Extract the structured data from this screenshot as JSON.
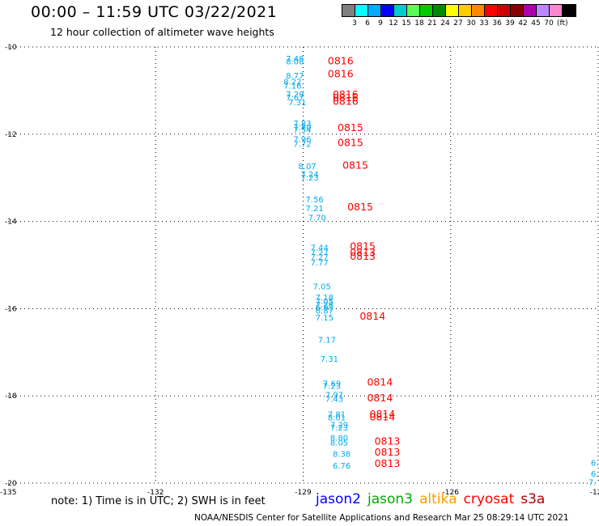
{
  "header": {
    "title": "00:00 – 11:59 UTC 03/22/2021",
    "subtitle": "12 hour collection of altimeter wave heights"
  },
  "legend": {
    "colors": [
      "#808080",
      "#00ffff",
      "#00aaff",
      "#0000ff",
      "#00cccc",
      "#55ff55",
      "#00cc00",
      "#008800",
      "#ffff00",
      "#ffcc00",
      "#ff8800",
      "#ff0000",
      "#cc0000",
      "#880000",
      "#aa00aa",
      "#bb88ff",
      "#ff88cc",
      "#000000"
    ],
    "labels": [
      "3",
      "6",
      "9",
      "12",
      "15",
      "18",
      "21",
      "24",
      "27",
      "30",
      "33",
      "36",
      "39",
      "42",
      "45",
      "70"
    ],
    "unit": "(ft)"
  },
  "footer": {
    "note": "note: 1) Time is in UTC; 2) SWH is in feet",
    "satellites": [
      {
        "name": "jason2",
        "color": "#0000ff"
      },
      {
        "name": "jason3",
        "color": "#00aa00"
      },
      {
        "name": "altika",
        "color": "#ff9900"
      },
      {
        "name": "cryosat",
        "color": "#ff0000"
      },
      {
        "name": "s3a",
        "color": "#aa0000"
      }
    ],
    "credit": "NOAA/NESDIS Center for Satellite Applications and Research   Mar 25 08:29:14 UTC 2021"
  },
  "chart_data": {
    "type": "scatter",
    "title": "00:00 – 11:59 UTC 03/22/2021",
    "subtitle": "12 hour collection of altimeter wave heights",
    "xlim": [
      -135,
      -123
    ],
    "ylim": [
      -20,
      -10
    ],
    "x_ticks": [
      "-135",
      "-132",
      "-129",
      "-126",
      "-123",
      "-12"
    ],
    "y_ticks": [
      "-10",
      "-12",
      "-14",
      "-16",
      "-18",
      "-20"
    ],
    "grid": true,
    "value_color": "#00aaee",
    "time_color": "#ff0000",
    "wave_heights": [
      {
        "lon": -129.35,
        "lat": -10.33,
        "value": "7.48"
      },
      {
        "lon": -129.35,
        "lat": -10.4,
        "value": "8.08"
      },
      {
        "lon": -129.35,
        "lat": -10.72,
        "value": "8.77"
      },
      {
        "lon": -129.4,
        "lat": -10.86,
        "value": "8.22"
      },
      {
        "lon": -129.4,
        "lat": -10.96,
        "value": "7.16"
      },
      {
        "lon": -129.35,
        "lat": -11.15,
        "value": "7.29"
      },
      {
        "lon": -129.35,
        "lat": -11.22,
        "value": "7.67"
      },
      {
        "lon": -129.3,
        "lat": -11.34,
        "value": "7.31"
      },
      {
        "lon": -129.2,
        "lat": -11.82,
        "value": "7.83"
      },
      {
        "lon": -129.2,
        "lat": -11.9,
        "value": "7.80"
      },
      {
        "lon": -129.2,
        "lat": -11.97,
        "value": "7.54"
      },
      {
        "lon": -129.2,
        "lat": -12.18,
        "value": "7.96"
      },
      {
        "lon": -129.2,
        "lat": -12.29,
        "value": "7.72"
      },
      {
        "lon": -129.1,
        "lat": -12.8,
        "value": "8.07"
      },
      {
        "lon": -129.05,
        "lat": -12.99,
        "value": "7.24"
      },
      {
        "lon": -129.05,
        "lat": -13.06,
        "value": "7.23"
      },
      {
        "lon": -128.95,
        "lat": -13.56,
        "value": "7.56"
      },
      {
        "lon": -128.95,
        "lat": -13.77,
        "value": "7.21"
      },
      {
        "lon": -128.9,
        "lat": -13.98,
        "value": "7.70"
      },
      {
        "lon": -128.85,
        "lat": -14.67,
        "value": "7.44"
      },
      {
        "lon": -128.85,
        "lat": -14.78,
        "value": "7.27"
      },
      {
        "lon": -128.85,
        "lat": -14.88,
        "value": "7.27"
      },
      {
        "lon": -128.85,
        "lat": -15.01,
        "value": "7.77"
      },
      {
        "lon": -128.8,
        "lat": -15.56,
        "value": "7.05"
      },
      {
        "lon": -128.75,
        "lat": -15.81,
        "value": "7.18"
      },
      {
        "lon": -128.75,
        "lat": -15.9,
        "value": "7.05"
      },
      {
        "lon": -128.75,
        "lat": -15.97,
        "value": "7.28"
      },
      {
        "lon": -128.75,
        "lat": -16.04,
        "value": "6.93"
      },
      {
        "lon": -128.75,
        "lat": -16.11,
        "value": "6.87"
      },
      {
        "lon": -128.75,
        "lat": -16.27,
        "value": "7.15"
      },
      {
        "lon": -128.7,
        "lat": -16.78,
        "value": "7.17"
      },
      {
        "lon": -128.65,
        "lat": -17.22,
        "value": "7.31"
      },
      {
        "lon": -128.6,
        "lat": -17.78,
        "value": "7.69"
      },
      {
        "lon": -128.6,
        "lat": -17.84,
        "value": "7.23"
      },
      {
        "lon": -128.55,
        "lat": -18.04,
        "value": "7.97"
      },
      {
        "lon": -128.55,
        "lat": -18.14,
        "value": "7.43"
      },
      {
        "lon": -128.5,
        "lat": -18.49,
        "value": "7.81"
      },
      {
        "lon": -128.5,
        "lat": -18.56,
        "value": "8.01"
      },
      {
        "lon": -128.45,
        "lat": -18.73,
        "value": "7.29"
      },
      {
        "lon": -128.45,
        "lat": -18.79,
        "value": "7.23"
      },
      {
        "lon": -128.45,
        "lat": -19.03,
        "value": "8.80"
      },
      {
        "lon": -128.45,
        "lat": -19.14,
        "value": "8.05"
      },
      {
        "lon": -128.4,
        "lat": -19.4,
        "value": "8.38"
      },
      {
        "lon": -128.4,
        "lat": -19.67,
        "value": "6.76"
      },
      {
        "lon": -123.15,
        "lat": -19.6,
        "value": "6."
      },
      {
        "lon": -123.15,
        "lat": -19.85,
        "value": "6."
      },
      {
        "lon": -123.2,
        "lat": -20.05,
        "value": "7."
      }
    ],
    "time_labels": [
      {
        "lon": -128.5,
        "lat": -10.4,
        "value": "0816"
      },
      {
        "lon": -128.5,
        "lat": -10.7,
        "value": "0816"
      },
      {
        "lon": -128.4,
        "lat": -11.17,
        "value": "0816"
      },
      {
        "lon": -128.4,
        "lat": -11.24,
        "value": "0816"
      },
      {
        "lon": -128.4,
        "lat": -11.33,
        "value": "0816"
      },
      {
        "lon": -128.3,
        "lat": -11.93,
        "value": "0815"
      },
      {
        "lon": -128.3,
        "lat": -12.27,
        "value": "0815"
      },
      {
        "lon": -128.2,
        "lat": -12.79,
        "value": "0815"
      },
      {
        "lon": -128.1,
        "lat": -13.75,
        "value": "0815"
      },
      {
        "lon": -128.05,
        "lat": -14.65,
        "value": "0815"
      },
      {
        "lon": -128.05,
        "lat": -14.79,
        "value": "0813"
      },
      {
        "lon": -128.05,
        "lat": -14.88,
        "value": "0813"
      },
      {
        "lon": -127.85,
        "lat": -16.25,
        "value": "0814"
      },
      {
        "lon": -127.7,
        "lat": -17.76,
        "value": "0814"
      },
      {
        "lon": -127.7,
        "lat": -18.13,
        "value": "0814"
      },
      {
        "lon": -127.65,
        "lat": -18.5,
        "value": "0814"
      },
      {
        "lon": -127.65,
        "lat": -18.56,
        "value": "0814"
      },
      {
        "lon": -127.55,
        "lat": -19.12,
        "value": "0813"
      },
      {
        "lon": -127.55,
        "lat": -19.37,
        "value": "0813"
      },
      {
        "lon": -127.55,
        "lat": -19.63,
        "value": "0813"
      }
    ]
  }
}
